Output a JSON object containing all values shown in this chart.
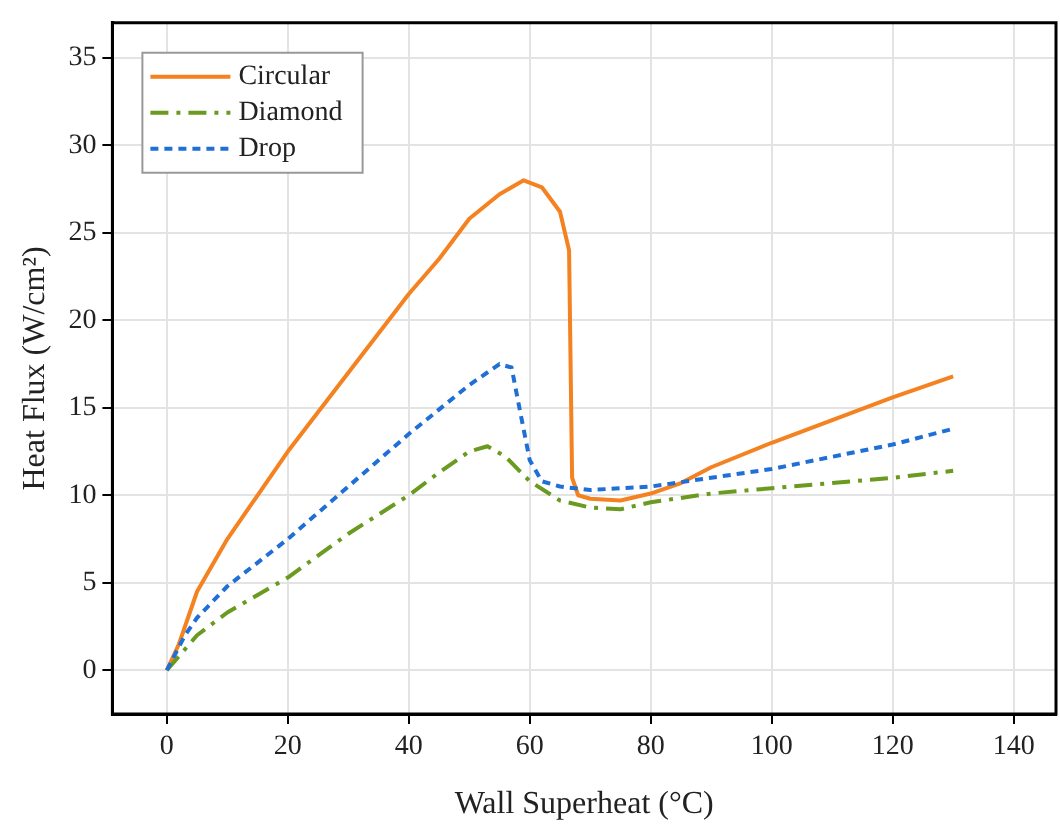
{
  "chart_data": {
    "type": "line",
    "xlabel": "Wall Superheat (°C)",
    "ylabel": "Heat Flux (W/cm²)",
    "xlim": [
      -9,
      147
    ],
    "ylim": [
      -2.5,
      37
    ],
    "xticks": [
      0,
      20,
      40,
      60,
      80,
      100,
      120,
      140
    ],
    "yticks": [
      0,
      5,
      10,
      15,
      20,
      25,
      30,
      35
    ],
    "grid": true,
    "legend": "top left",
    "marker": "none",
    "series": [
      {
        "name": "Circular",
        "color": "#f58220",
        "line_style": "solid",
        "x": [
          0,
          2,
          5,
          10,
          15,
          20,
          30,
          40,
          45,
          50,
          55,
          59,
          62,
          65,
          66.5,
          67,
          68,
          70,
          75,
          80,
          85,
          90,
          100,
          110,
          120,
          130
        ],
        "values": [
          0,
          1.5,
          4.5,
          7.5,
          10,
          12.5,
          17,
          21.5,
          23.5,
          25.8,
          27.2,
          28,
          27.6,
          26.2,
          24,
          11,
          10,
          9.8,
          9.7,
          10.1,
          10.7,
          11.6,
          13,
          14.3,
          15.6,
          16.8
        ]
      },
      {
        "name": "Diamond",
        "color": "#6a9a1f",
        "line_style": "dashdot",
        "x": [
          0,
          5,
          10,
          20,
          30,
          40,
          45,
          50,
          53,
          56,
          60,
          65,
          70,
          75,
          80,
          90,
          100,
          110,
          120,
          130
        ],
        "values": [
          0,
          2,
          3.3,
          5.3,
          7.8,
          10,
          11.3,
          12.5,
          12.8,
          12.2,
          10.8,
          9.7,
          9.3,
          9.2,
          9.6,
          10.1,
          10.4,
          10.7,
          11,
          11.4
        ]
      },
      {
        "name": "Drop",
        "color": "#1f6fd6",
        "line_style": "dashed",
        "x": [
          0,
          3,
          5,
          10,
          20,
          30,
          40,
          50,
          55,
          57,
          58,
          60,
          62,
          65,
          70,
          80,
          90,
          100,
          110,
          120,
          130
        ],
        "values": [
          0,
          2,
          3,
          4.8,
          7.5,
          10.5,
          13.5,
          16.3,
          17.5,
          17.3,
          15.5,
          12,
          10.8,
          10.5,
          10.3,
          10.5,
          11,
          11.5,
          12.2,
          12.9,
          13.8
        ]
      }
    ]
  }
}
